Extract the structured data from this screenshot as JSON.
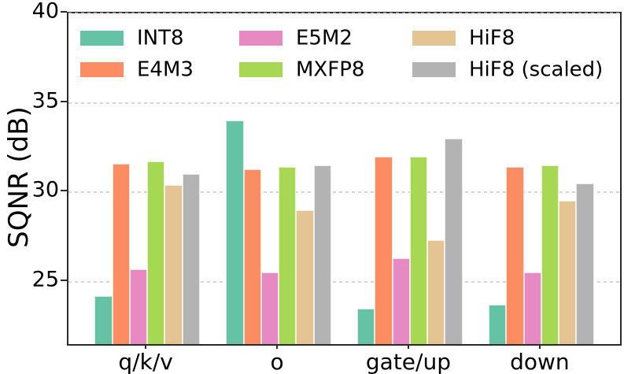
{
  "chart_data": {
    "type": "bar",
    "title": "",
    "xlabel": "",
    "ylabel": "SQNR (dB)",
    "categories": [
      "q/k/v",
      "o",
      "gate/up",
      "down"
    ],
    "series": [
      {
        "name": "INT8",
        "color": "#66c2a5",
        "values": [
          24.2,
          34.0,
          23.5,
          23.7
        ]
      },
      {
        "name": "E4M3",
        "color": "#fc8d62",
        "values": [
          31.6,
          31.3,
          32.0,
          31.4
        ]
      },
      {
        "name": "E5M2",
        "color": "#e78ac3",
        "values": [
          25.7,
          25.5,
          26.3,
          25.5
        ]
      },
      {
        "name": "MXFP8",
        "color": "#a6d854",
        "values": [
          31.7,
          31.4,
          32.0,
          31.5
        ]
      },
      {
        "name": "HiF8",
        "color": "#e5c494",
        "values": [
          30.4,
          29.0,
          27.3,
          29.5
        ]
      },
      {
        "name": "HiF8 (scaled)",
        "color": "#b3b3b3",
        "values": [
          31.0,
          31.5,
          33.0,
          30.5
        ]
      }
    ],
    "yticks": [
      25,
      30,
      35,
      40
    ],
    "ylim": [
      21.5,
      40
    ],
    "grid": {
      "axis": "y",
      "style": "dotted",
      "color": "#d6d6d6"
    },
    "legend": {
      "position": "upper-left",
      "columns": 3,
      "rows": 2,
      "order": "column-major"
    },
    "colors": {
      "spine": "#2b2b2b",
      "text": "#000000",
      "background": "#ffffff"
    }
  }
}
